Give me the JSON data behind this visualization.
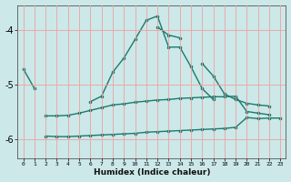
{
  "x": [
    0,
    1,
    2,
    3,
    4,
    5,
    6,
    7,
    8,
    9,
    10,
    11,
    12,
    13,
    14,
    15,
    16,
    17,
    18,
    19,
    20,
    21,
    22,
    23
  ],
  "line1": [
    -4.72,
    -5.08,
    null,
    null,
    null,
    null,
    -5.32,
    -5.22,
    -4.78,
    -4.52,
    -4.18,
    -3.83,
    -3.75,
    -4.32,
    -4.32,
    -4.68,
    -5.08,
    -5.28,
    null,
    null,
    null,
    null,
    null,
    null
  ],
  "line2": [
    null,
    null,
    null,
    null,
    null,
    null,
    null,
    null,
    null,
    null,
    null,
    null,
    -3.95,
    -4.1,
    -4.15,
    null,
    -4.62,
    -4.85,
    -5.18,
    -5.28,
    -5.35,
    -5.38,
    -5.4,
    null
  ],
  "line3": [
    null,
    null,
    -5.58,
    -5.58,
    -5.57,
    -5.53,
    -5.48,
    -5.43,
    -5.38,
    -5.36,
    -5.33,
    -5.31,
    -5.29,
    -5.28,
    -5.26,
    -5.25,
    -5.24,
    -5.23,
    -5.23,
    -5.22,
    -5.5,
    -5.53,
    -5.56,
    null
  ],
  "line4": [
    null,
    null,
    -5.95,
    -5.96,
    -5.96,
    -5.95,
    -5.94,
    -5.93,
    -5.92,
    -5.91,
    -5.9,
    -5.88,
    -5.87,
    -5.86,
    -5.85,
    -5.84,
    -5.83,
    -5.82,
    -5.81,
    -5.79,
    -5.61,
    -5.63,
    -5.62,
    -5.62
  ],
  "xlabel": "Humidex (Indice chaleur)",
  "xtick_labels": [
    "0",
    "1",
    "2",
    "3",
    "4",
    "5",
    "6",
    "7",
    "8",
    "9",
    "10",
    "11",
    "12",
    "13",
    "14",
    "15",
    "16",
    "17",
    "18",
    "19",
    "20",
    "21",
    "22",
    "23"
  ],
  "yticks": [
    -4,
    -5,
    -6
  ],
  "ylim": [
    -6.35,
    -3.55
  ],
  "xlim": [
    -0.5,
    23.5
  ],
  "bg_color": "#cce8e8",
  "line_color": "#1a7a6e",
  "grid_color": "#f0a0a0"
}
